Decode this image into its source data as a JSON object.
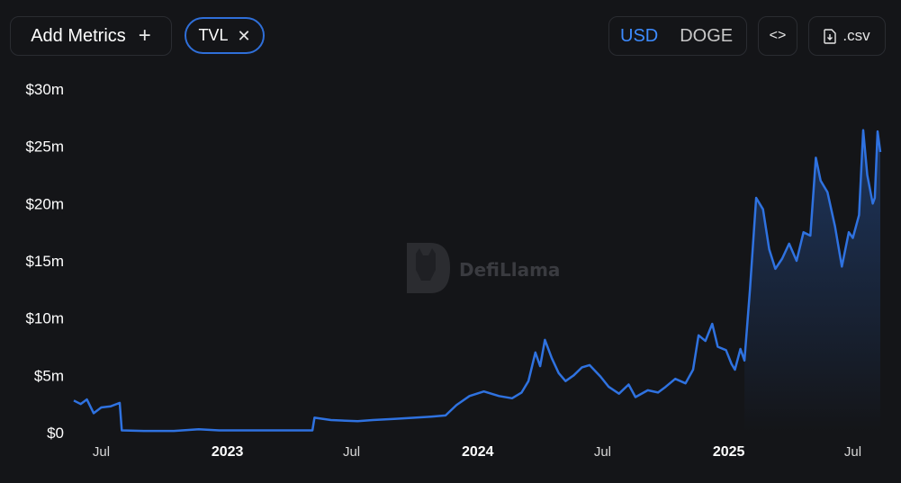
{
  "toolbar": {
    "add_metrics_label": "Add Metrics",
    "metric_pill_label": "TVL",
    "currency_options": [
      "USD",
      "DOGE"
    ],
    "currency_selected": "USD",
    "embed_icon": "code-brackets-icon",
    "csv_label": ".csv",
    "csv_icon": "file-download-icon"
  },
  "watermark": {
    "text": "DefiLlama"
  },
  "colors": {
    "line": "#2f72e0",
    "background": "#141518",
    "accent": "#3d8bff"
  },
  "chart_data": {
    "type": "area",
    "title": "",
    "xlabel": "",
    "ylabel": "",
    "ylim": [
      0,
      30
    ],
    "y_unit": "$m",
    "y_ticks": [
      "$0",
      "$5m",
      "$10m",
      "$15m",
      "$20m",
      "$25m",
      "$30m"
    ],
    "x_ticks": [
      {
        "label": "Jul",
        "date": "2022-07-01",
        "bold": false
      },
      {
        "label": "2023",
        "date": "2023-01-01",
        "bold": true
      },
      {
        "label": "Jul",
        "date": "2023-07-01",
        "bold": false
      },
      {
        "label": "2024",
        "date": "2024-01-01",
        "bold": true
      },
      {
        "label": "Jul",
        "date": "2024-07-01",
        "bold": false
      },
      {
        "label": "2025",
        "date": "2025-01-01",
        "bold": true
      },
      {
        "label": "Jul",
        "date": "2025-07-01",
        "bold": false
      }
    ],
    "x_range": [
      "2022-05-22",
      "2025-08-10"
    ],
    "series": [
      {
        "name": "TVL",
        "points": [
          [
            "2022-05-22",
            2.8
          ],
          [
            "2022-06-01",
            2.5
          ],
          [
            "2022-06-10",
            2.9
          ],
          [
            "2022-06-20",
            1.7
          ],
          [
            "2022-07-01",
            2.2
          ],
          [
            "2022-07-15",
            2.3
          ],
          [
            "2022-07-28",
            2.6
          ],
          [
            "2022-07-31",
            0.2
          ],
          [
            "2022-09-01",
            0.15
          ],
          [
            "2022-10-15",
            0.15
          ],
          [
            "2022-11-20",
            0.3
          ],
          [
            "2022-12-20",
            0.2
          ],
          [
            "2023-02-01",
            0.2
          ],
          [
            "2023-04-01",
            0.2
          ],
          [
            "2023-05-05",
            0.2
          ],
          [
            "2023-05-08",
            1.3
          ],
          [
            "2023-06-01",
            1.1
          ],
          [
            "2023-07-10",
            1.0
          ],
          [
            "2023-08-01",
            1.1
          ],
          [
            "2023-09-01",
            1.2
          ],
          [
            "2023-10-01",
            1.3
          ],
          [
            "2023-10-25",
            1.4
          ],
          [
            "2023-11-15",
            1.5
          ],
          [
            "2023-12-01",
            2.4
          ],
          [
            "2023-12-20",
            3.2
          ],
          [
            "2024-01-10",
            3.6
          ],
          [
            "2024-02-01",
            3.2
          ],
          [
            "2024-02-20",
            3.0
          ],
          [
            "2024-03-05",
            3.5
          ],
          [
            "2024-03-15",
            4.5
          ],
          [
            "2024-03-25",
            7.0
          ],
          [
            "2024-04-01",
            5.8
          ],
          [
            "2024-04-08",
            8.1
          ],
          [
            "2024-04-18",
            6.5
          ],
          [
            "2024-04-28",
            5.2
          ],
          [
            "2024-05-08",
            4.5
          ],
          [
            "2024-05-20",
            5.0
          ],
          [
            "2024-06-01",
            5.7
          ],
          [
            "2024-06-12",
            5.9
          ],
          [
            "2024-06-28",
            4.9
          ],
          [
            "2024-07-10",
            4.0
          ],
          [
            "2024-07-25",
            3.4
          ],
          [
            "2024-08-08",
            4.2
          ],
          [
            "2024-08-18",
            3.1
          ],
          [
            "2024-09-05",
            3.7
          ],
          [
            "2024-09-20",
            3.5
          ],
          [
            "2024-10-01",
            4.0
          ],
          [
            "2024-10-15",
            4.7
          ],
          [
            "2024-10-30",
            4.3
          ],
          [
            "2024-11-10",
            5.5
          ],
          [
            "2024-11-18",
            8.5
          ],
          [
            "2024-11-28",
            8.0
          ],
          [
            "2024-12-08",
            9.5
          ],
          [
            "2024-12-16",
            7.5
          ],
          [
            "2024-12-28",
            7.2
          ],
          [
            "2025-01-05",
            6.0
          ],
          [
            "2025-01-10",
            5.5
          ],
          [
            "2025-01-18",
            7.3
          ],
          [
            "2025-01-24",
            6.3
          ],
          [
            "2025-02-01",
            12.5
          ],
          [
            "2025-02-10",
            20.5
          ],
          [
            "2025-02-20",
            19.5
          ],
          [
            "2025-03-01",
            16.0
          ],
          [
            "2025-03-10",
            14.3
          ],
          [
            "2025-03-20",
            15.2
          ],
          [
            "2025-03-30",
            16.5
          ],
          [
            "2025-04-10",
            15.0
          ],
          [
            "2025-04-20",
            17.5
          ],
          [
            "2025-04-30",
            17.2
          ],
          [
            "2025-05-08",
            24.0
          ],
          [
            "2025-05-15",
            22.0
          ],
          [
            "2025-05-25",
            21.0
          ],
          [
            "2025-06-05",
            18.0
          ],
          [
            "2025-06-15",
            14.5
          ],
          [
            "2025-06-25",
            17.5
          ],
          [
            "2025-07-01",
            17.0
          ],
          [
            "2025-07-10",
            19.0
          ],
          [
            "2025-07-16",
            26.4
          ],
          [
            "2025-07-22",
            22.5
          ],
          [
            "2025-07-30",
            20.0
          ],
          [
            "2025-08-02",
            20.5
          ],
          [
            "2025-08-06",
            26.3
          ],
          [
            "2025-08-10",
            24.5
          ]
        ]
      }
    ]
  }
}
